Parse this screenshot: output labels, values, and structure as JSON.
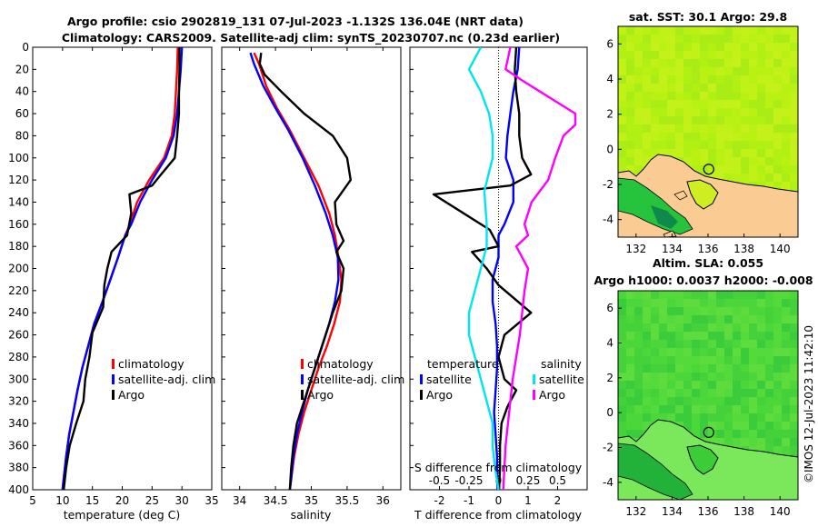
{
  "title": {
    "line1": "Argo profile: csio 2902819_131 07-Jul-2023 -1.132S 136.04E (NRT data)",
    "line2": "Climatology: CARS2009. Satellite-adj clim: synTS_20230707.nc (0.23d earlier)"
  },
  "colors": {
    "climatology": "#ff0000",
    "satellite": "#0000ff",
    "argo": "#000000",
    "sal_diff": "#ff00ff",
    "sal_sat": "#00e5ee"
  },
  "chart_data": [
    {
      "type": "line",
      "id": "temperature",
      "xlabel": "temperature (deg C)",
      "xlim": [
        5,
        35
      ],
      "ylim": [
        400,
        0
      ],
      "xticks": [
        "5",
        "10",
        "15",
        "20",
        "25",
        "30",
        "35"
      ],
      "yticks": [
        "0",
        "20",
        "40",
        "60",
        "80",
        "100",
        "120",
        "140",
        "160",
        "180",
        "200",
        "220",
        "240",
        "260",
        "280",
        "300",
        "320",
        "340",
        "360",
        "380",
        "400"
      ],
      "legend": [
        "climatology",
        "satellite-adj. clim",
        "Argo"
      ],
      "series": [
        {
          "name": "climatology",
          "color": "#ff0000",
          "points": [
            [
              29.3,
              0
            ],
            [
              29.2,
              20
            ],
            [
              29.0,
              40
            ],
            [
              28.8,
              60
            ],
            [
              28.3,
              80
            ],
            [
              27.0,
              100
            ],
            [
              24.5,
              120
            ],
            [
              22.5,
              140
            ],
            [
              21.3,
              160
            ],
            [
              20.5,
              170
            ],
            [
              19.3,
              190
            ],
            [
              18.0,
              210
            ],
            [
              16.7,
              230
            ],
            [
              15.3,
              250
            ],
            [
              14.3,
              270
            ],
            [
              13.3,
              290
            ],
            [
              12.5,
              310
            ],
            [
              11.8,
              330
            ],
            [
              11.1,
              350
            ],
            [
              10.6,
              370
            ],
            [
              10.2,
              390
            ],
            [
              10.0,
              400
            ]
          ]
        },
        {
          "name": "satellite-adj. clim",
          "color": "#0000ff",
          "points": [
            [
              30.0,
              0
            ],
            [
              29.8,
              20
            ],
            [
              29.5,
              40
            ],
            [
              29.2,
              60
            ],
            [
              28.6,
              80
            ],
            [
              27.3,
              100
            ],
            [
              25.0,
              120
            ],
            [
              23.0,
              140
            ],
            [
              21.5,
              160
            ],
            [
              20.5,
              170
            ],
            [
              19.3,
              190
            ],
            [
              18.0,
              210
            ],
            [
              16.7,
              230
            ],
            [
              15.3,
              250
            ],
            [
              14.3,
              270
            ],
            [
              13.3,
              290
            ],
            [
              12.5,
              310
            ],
            [
              11.8,
              330
            ],
            [
              11.1,
              350
            ],
            [
              10.6,
              370
            ],
            [
              10.2,
              390
            ],
            [
              10.0,
              400
            ]
          ]
        },
        {
          "name": "Argo",
          "color": "#000000",
          "points": [
            [
              29.6,
              0
            ],
            [
              29.6,
              20
            ],
            [
              29.5,
              40
            ],
            [
              29.5,
              60
            ],
            [
              29.2,
              80
            ],
            [
              28.8,
              100
            ],
            [
              26.5,
              115
            ],
            [
              25.0,
              125
            ],
            [
              21.2,
              133
            ],
            [
              21.5,
              150
            ],
            [
              20.8,
              170
            ],
            [
              18.2,
              185
            ],
            [
              17.5,
              200
            ],
            [
              17.0,
              215
            ],
            [
              16.8,
              235
            ],
            [
              15.0,
              258
            ],
            [
              14.5,
              280
            ],
            [
              13.8,
              300
            ],
            [
              13.5,
              320
            ],
            [
              12.3,
              340
            ],
            [
              11.2,
              360
            ],
            [
              10.6,
              380
            ],
            [
              10.2,
              400
            ]
          ]
        }
      ]
    },
    {
      "type": "line",
      "id": "salinity",
      "xlabel": "salinity",
      "xlim": [
        33.75,
        36.25
      ],
      "ylim": [
        400,
        0
      ],
      "xticks": [
        "34",
        "34.5",
        "35",
        "35.5",
        "36"
      ],
      "legend": [
        "climatology",
        "satellite-adj. clim",
        "Argo"
      ],
      "series": [
        {
          "name": "climatology",
          "color": "#ff0000",
          "points": [
            [
              34.2,
              5
            ],
            [
              34.27,
              15
            ],
            [
              34.37,
              35
            ],
            [
              34.52,
              55
            ],
            [
              34.7,
              75
            ],
            [
              34.9,
              100
            ],
            [
              35.1,
              125
            ],
            [
              35.25,
              150
            ],
            [
              35.33,
              170
            ],
            [
              35.38,
              190
            ],
            [
              35.42,
              210
            ],
            [
              35.4,
              230
            ],
            [
              35.32,
              250
            ],
            [
              35.22,
              270
            ],
            [
              35.1,
              290
            ],
            [
              35.0,
              310
            ],
            [
              34.9,
              330
            ],
            [
              34.82,
              350
            ],
            [
              34.76,
              370
            ],
            [
              34.72,
              390
            ],
            [
              34.7,
              400
            ]
          ]
        },
        {
          "name": "satellite-adj. clim",
          "color": "#0000ff",
          "points": [
            [
              34.15,
              5
            ],
            [
              34.2,
              15
            ],
            [
              34.33,
              35
            ],
            [
              34.5,
              55
            ],
            [
              34.68,
              75
            ],
            [
              34.88,
              100
            ],
            [
              35.05,
              125
            ],
            [
              35.2,
              150
            ],
            [
              35.3,
              170
            ],
            [
              35.37,
              190
            ],
            [
              35.38,
              210
            ],
            [
              35.33,
              230
            ],
            [
              35.25,
              250
            ],
            [
              35.15,
              270
            ],
            [
              35.05,
              290
            ],
            [
              34.95,
              310
            ],
            [
              34.87,
              330
            ],
            [
              34.8,
              350
            ],
            [
              34.75,
              370
            ],
            [
              34.72,
              390
            ],
            [
              34.7,
              400
            ]
          ]
        },
        {
          "name": "Argo",
          "color": "#000000",
          "points": [
            [
              34.3,
              5
            ],
            [
              34.28,
              15
            ],
            [
              34.35,
              25
            ],
            [
              34.58,
              40
            ],
            [
              34.9,
              60
            ],
            [
              35.3,
              80
            ],
            [
              35.5,
              100
            ],
            [
              35.55,
              120
            ],
            [
              35.33,
              140
            ],
            [
              35.35,
              160
            ],
            [
              35.45,
              175
            ],
            [
              35.35,
              185
            ],
            [
              35.45,
              200
            ],
            [
              35.42,
              220
            ],
            [
              35.3,
              240
            ],
            [
              35.2,
              260
            ],
            [
              35.1,
              280
            ],
            [
              35.0,
              300
            ],
            [
              34.9,
              320
            ],
            [
              34.8,
              340
            ],
            [
              34.75,
              360
            ],
            [
              34.72,
              380
            ],
            [
              34.7,
              400
            ]
          ]
        }
      ]
    },
    {
      "type": "line",
      "id": "differences",
      "xlabel": "T difference from climatology",
      "xlabel_top": "S difference from climatology",
      "xlim": [
        -3,
        3
      ],
      "ylim": [
        400,
        0
      ],
      "xticks": [
        "-2",
        "-1",
        "0",
        "1",
        "2"
      ],
      "xticks_top": [
        "-0.5",
        "-0.25",
        "0",
        "0.25",
        "0.5"
      ],
      "legend_left_title": "temperature",
      "legend_right_title": "salinity",
      "legend": [
        "satellite",
        "Argo",
        "satellite",
        "Argo"
      ],
      "series": [
        {
          "name": "temperature satellite",
          "color": "#0000ff",
          "points": [
            [
              0.7,
              0
            ],
            [
              0.65,
              20
            ],
            [
              0.5,
              40
            ],
            [
              0.4,
              60
            ],
            [
              0.3,
              80
            ],
            [
              0.25,
              100
            ],
            [
              0.5,
              120
            ],
            [
              0.5,
              140
            ],
            [
              0.2,
              160
            ],
            [
              0,
              170
            ],
            [
              0,
              190
            ],
            [
              -0.2,
              210
            ],
            [
              -0.2,
              230
            ],
            [
              -0.1,
              250
            ],
            [
              -0.05,
              270
            ],
            [
              -0.05,
              290
            ],
            [
              -0.1,
              310
            ],
            [
              -0.15,
              330
            ],
            [
              -0.1,
              350
            ],
            [
              -0.05,
              370
            ],
            [
              -0.05,
              390
            ],
            [
              -0.03,
              400
            ]
          ]
        },
        {
          "name": "temperature Argo",
          "color": "#000000",
          "points": [
            [
              0.6,
              0
            ],
            [
              0.55,
              20
            ],
            [
              0.6,
              40
            ],
            [
              0.7,
              60
            ],
            [
              0.7,
              80
            ],
            [
              0.8,
              100
            ],
            [
              1.1,
              115
            ],
            [
              0.4,
              125
            ],
            [
              -2.2,
              133
            ],
            [
              -0.3,
              165
            ],
            [
              0,
              180
            ],
            [
              -0.9,
              185
            ],
            [
              -0.4,
              200
            ],
            [
              0,
              215
            ],
            [
              1.1,
              240
            ],
            [
              0.2,
              260
            ],
            [
              0,
              280
            ],
            [
              0.2,
              300
            ],
            [
              0.6,
              310
            ],
            [
              0.3,
              325
            ],
            [
              0.1,
              340
            ],
            [
              0.05,
              360
            ],
            [
              0.05,
              380
            ],
            [
              0.02,
              400
            ]
          ]
        },
        {
          "name": "salinity satellite",
          "color": "#00e5ee",
          "points": [
            [
              -0.15,
              0
            ],
            [
              -0.25,
              20
            ],
            [
              -0.15,
              40
            ],
            [
              -0.08,
              60
            ],
            [
              -0.05,
              80
            ],
            [
              -0.05,
              100
            ],
            [
              -0.12,
              130
            ],
            [
              -0.1,
              160
            ],
            [
              -0.1,
              180
            ],
            [
              -0.15,
              200
            ],
            [
              -0.2,
              220
            ],
            [
              -0.25,
              240
            ],
            [
              -0.25,
              260
            ],
            [
              -0.2,
              280
            ],
            [
              -0.15,
              300
            ],
            [
              -0.1,
              320
            ],
            [
              -0.05,
              340
            ],
            [
              -0.05,
              360
            ],
            [
              -0.03,
              380
            ],
            [
              0,
              400
            ]
          ]
        },
        {
          "name": "salinity Argo",
          "color": "#ff00ff",
          "points": [
            [
              0.1,
              0
            ],
            [
              0.06,
              20
            ],
            [
              0.2,
              30
            ],
            [
              0.35,
              40
            ],
            [
              0.5,
              50
            ],
            [
              0.65,
              60
            ],
            [
              0.65,
              70
            ],
            [
              0.55,
              80
            ],
            [
              0.48,
              100
            ],
            [
              0.42,
              120
            ],
            [
              0.28,
              140
            ],
            [
              0.22,
              160
            ],
            [
              0.25,
              170
            ],
            [
              0.15,
              180
            ],
            [
              0.25,
              200
            ],
            [
              0.22,
              220
            ],
            [
              0.2,
              240
            ],
            [
              0.18,
              260
            ],
            [
              0.15,
              280
            ],
            [
              0.12,
              300
            ],
            [
              0.1,
              320
            ],
            [
              0.08,
              340
            ],
            [
              0.06,
              360
            ],
            [
              0.05,
              380
            ],
            [
              0.04,
              400
            ]
          ]
        }
      ]
    },
    {
      "type": "heatmap",
      "id": "sst-map",
      "title": "sat. SST: 30.1 Argo: 29.8",
      "xlim": [
        131,
        141
      ],
      "ylim": [
        -5,
        7
      ],
      "xticks": [
        "132",
        "134",
        "136",
        "138",
        "140"
      ],
      "yticks": [
        "6",
        "4",
        "2",
        "0",
        "-2",
        "-4"
      ],
      "argo_position": [
        136.04,
        -1.132
      ]
    },
    {
      "type": "heatmap",
      "id": "sla-map",
      "title_line1": "Altim. SLA: 0.055",
      "title_line2": "Argo h1000: 0.0037 h2000: -0.008",
      "xlim": [
        131,
        141
      ],
      "ylim": [
        -5,
        7
      ],
      "xticks": [
        "132",
        "134",
        "136",
        "138",
        "140"
      ],
      "yticks": [
        "6",
        "4",
        "2",
        "0",
        "-2",
        "-4"
      ],
      "argo_position": [
        136.04,
        -1.132
      ]
    }
  ],
  "footer": {
    "stamp": "©IMOS 12-Jul-2023 11:42:10"
  }
}
